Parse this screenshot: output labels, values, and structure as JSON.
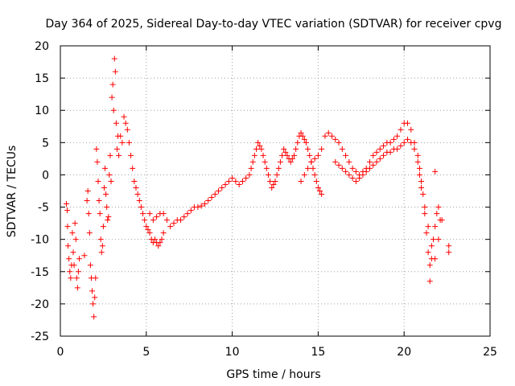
{
  "chart_data": {
    "type": "scatter",
    "title": "Day 364 of 2025, Sidereal Day-to-day VTEC variation (SDTVAR) for receiver cpvg",
    "xlabel": "GPS time / hours",
    "ylabel": "SDTVAR / TECUs",
    "xlim": [
      0,
      25
    ],
    "ylim": [
      -25,
      20
    ],
    "xticks": [
      0,
      5,
      10,
      15,
      20,
      25
    ],
    "yticks": [
      -25,
      -20,
      -15,
      -10,
      -5,
      0,
      5,
      10,
      15,
      20
    ],
    "grid": true,
    "marker": "+",
    "color": "#ff0000",
    "series": [
      {
        "name": "SDTVAR",
        "points": [
          [
            0.35,
            -4.5
          ],
          [
            0.4,
            -5.5
          ],
          [
            0.42,
            -8
          ],
          [
            0.45,
            -11
          ],
          [
            0.5,
            -13
          ],
          [
            0.55,
            -15
          ],
          [
            0.6,
            -16
          ],
          [
            0.65,
            -14
          ],
          [
            0.7,
            -9
          ],
          [
            0.75,
            -12
          ],
          [
            0.8,
            -14
          ],
          [
            0.85,
            -7.5
          ],
          [
            0.9,
            -10
          ],
          [
            0.95,
            -16
          ],
          [
            1.0,
            -17.5
          ],
          [
            1.05,
            -15
          ],
          [
            1.1,
            -13
          ],
          [
            1.4,
            -12.5
          ],
          [
            1.55,
            -4
          ],
          [
            1.6,
            -2.5
          ],
          [
            1.65,
            -6
          ],
          [
            1.7,
            -9
          ],
          [
            1.75,
            -14
          ],
          [
            1.8,
            -16
          ],
          [
            1.85,
            -18
          ],
          [
            1.9,
            -20
          ],
          [
            1.95,
            -22
          ],
          [
            2.0,
            -19
          ],
          [
            2.05,
            -16
          ],
          [
            2.1,
            4
          ],
          [
            2.15,
            2
          ],
          [
            2.2,
            -1
          ],
          [
            2.25,
            -4
          ],
          [
            2.3,
            -6
          ],
          [
            2.35,
            -10
          ],
          [
            2.4,
            -12
          ],
          [
            2.45,
            -11
          ],
          [
            2.5,
            -8
          ],
          [
            2.55,
            -2
          ],
          [
            2.6,
            1
          ],
          [
            2.65,
            -3
          ],
          [
            2.7,
            -5
          ],
          [
            2.75,
            -7
          ],
          [
            2.8,
            -6.5
          ],
          [
            2.85,
            0
          ],
          [
            2.9,
            3
          ],
          [
            2.95,
            -1
          ],
          [
            3.0,
            12
          ],
          [
            3.05,
            14
          ],
          [
            3.1,
            10
          ],
          [
            3.15,
            18
          ],
          [
            3.2,
            16
          ],
          [
            3.25,
            8
          ],
          [
            3.3,
            4
          ],
          [
            3.35,
            6
          ],
          [
            3.4,
            3
          ],
          [
            3.5,
            6
          ],
          [
            3.6,
            5
          ],
          [
            3.7,
            9
          ],
          [
            3.8,
            8
          ],
          [
            3.9,
            7
          ],
          [
            4.0,
            5
          ],
          [
            4.1,
            3
          ],
          [
            4.2,
            1
          ],
          [
            4.3,
            -1
          ],
          [
            4.4,
            -2
          ],
          [
            4.5,
            -3
          ],
          [
            4.6,
            -4
          ],
          [
            4.7,
            -5
          ],
          [
            4.8,
            -6
          ],
          [
            4.9,
            -7
          ],
          [
            5.0,
            -8
          ],
          [
            5.1,
            -8.5
          ],
          [
            5.2,
            -9
          ],
          [
            5.3,
            -10
          ],
          [
            5.4,
            -10.5
          ],
          [
            5.5,
            -10
          ],
          [
            5.6,
            -10.5
          ],
          [
            5.7,
            -11
          ],
          [
            5.8,
            -10.5
          ],
          [
            5.9,
            -10
          ],
          [
            6.0,
            -9
          ],
          [
            5.2,
            -6
          ],
          [
            5.4,
            -7
          ],
          [
            5.6,
            -6.5
          ],
          [
            5.8,
            -6
          ],
          [
            6.0,
            -6
          ],
          [
            6.2,
            -7
          ],
          [
            6.4,
            -8
          ],
          [
            6.6,
            -7.5
          ],
          [
            6.8,
            -7
          ],
          [
            7.0,
            -7
          ],
          [
            7.2,
            -6.5
          ],
          [
            7.4,
            -6
          ],
          [
            7.6,
            -5.5
          ],
          [
            7.8,
            -5
          ],
          [
            8.0,
            -5
          ],
          [
            8.2,
            -4.8
          ],
          [
            8.4,
            -4.5
          ],
          [
            8.6,
            -4
          ],
          [
            8.8,
            -3.5
          ],
          [
            9.0,
            -3
          ],
          [
            9.2,
            -2.5
          ],
          [
            9.4,
            -2
          ],
          [
            9.6,
            -1.5
          ],
          [
            9.8,
            -1
          ],
          [
            10.0,
            -0.5
          ],
          [
            10.2,
            -1
          ],
          [
            10.4,
            -1.5
          ],
          [
            10.6,
            -1
          ],
          [
            10.8,
            -0.5
          ],
          [
            11.0,
            0
          ],
          [
            11.1,
            1
          ],
          [
            11.2,
            2
          ],
          [
            11.3,
            3
          ],
          [
            11.4,
            4
          ],
          [
            11.5,
            5
          ],
          [
            11.6,
            4.5
          ],
          [
            11.7,
            4
          ],
          [
            11.8,
            3
          ],
          [
            11.9,
            2
          ],
          [
            12.0,
            1
          ],
          [
            12.1,
            0
          ],
          [
            12.2,
            -1
          ],
          [
            12.3,
            -2
          ],
          [
            12.4,
            -1.5
          ],
          [
            12.5,
            -1
          ],
          [
            12.6,
            0
          ],
          [
            12.7,
            1
          ],
          [
            12.8,
            2
          ],
          [
            12.9,
            3
          ],
          [
            13.0,
            4
          ],
          [
            13.1,
            3.5
          ],
          [
            13.2,
            3
          ],
          [
            13.3,
            2.5
          ],
          [
            13.4,
            2
          ],
          [
            13.5,
            2.5
          ],
          [
            13.6,
            3
          ],
          [
            13.7,
            4
          ],
          [
            13.8,
            5
          ],
          [
            13.9,
            6
          ],
          [
            14.0,
            6.5
          ],
          [
            14.1,
            6
          ],
          [
            14.2,
            5.5
          ],
          [
            14.3,
            5
          ],
          [
            14.4,
            4
          ],
          [
            14.5,
            3
          ],
          [
            14.6,
            2
          ],
          [
            14.7,
            1
          ],
          [
            14.8,
            0
          ],
          [
            14.9,
            -1
          ],
          [
            15.0,
            -2
          ],
          [
            15.1,
            -2.5
          ],
          [
            15.2,
            -3
          ],
          [
            14.0,
            -1
          ],
          [
            14.2,
            0
          ],
          [
            14.4,
            1
          ],
          [
            14.6,
            2
          ],
          [
            14.8,
            2.5
          ],
          [
            15.0,
            3
          ],
          [
            15.2,
            4
          ],
          [
            15.4,
            6
          ],
          [
            15.6,
            6.5
          ],
          [
            15.8,
            6
          ],
          [
            16.0,
            5.5
          ],
          [
            16.2,
            5
          ],
          [
            16.4,
            4
          ],
          [
            16.6,
            3
          ],
          [
            16.8,
            2
          ],
          [
            17.0,
            1
          ],
          [
            17.2,
            0.5
          ],
          [
            17.4,
            0
          ],
          [
            17.6,
            0.5
          ],
          [
            17.8,
            1
          ],
          [
            18.0,
            2
          ],
          [
            18.2,
            3
          ],
          [
            18.4,
            3.5
          ],
          [
            18.6,
            4
          ],
          [
            18.8,
            4.5
          ],
          [
            19.0,
            5
          ],
          [
            19.2,
            5
          ],
          [
            19.4,
            5.5
          ],
          [
            19.6,
            6
          ],
          [
            19.8,
            7
          ],
          [
            20.0,
            8
          ],
          [
            20.2,
            8
          ],
          [
            20.4,
            7
          ],
          [
            20.6,
            5
          ],
          [
            20.8,
            3
          ],
          [
            20.9,
            1
          ],
          [
            21.0,
            -1
          ],
          [
            21.1,
            -3
          ],
          [
            21.2,
            -6
          ],
          [
            21.3,
            -9
          ],
          [
            21.4,
            -12
          ],
          [
            21.5,
            -14
          ],
          [
            21.6,
            -13
          ],
          [
            21.7,
            -10
          ],
          [
            21.8,
            -8
          ],
          [
            21.9,
            -6
          ],
          [
            22.0,
            -5
          ],
          [
            22.1,
            -7
          ],
          [
            16.0,
            2
          ],
          [
            16.2,
            1.5
          ],
          [
            16.4,
            1
          ],
          [
            16.6,
            0.5
          ],
          [
            16.8,
            0
          ],
          [
            17.0,
            -0.5
          ],
          [
            17.2,
            -1
          ],
          [
            17.4,
            -0.5
          ],
          [
            17.6,
            0
          ],
          [
            17.8,
            0.5
          ],
          [
            18.0,
            1
          ],
          [
            18.2,
            1.5
          ],
          [
            18.4,
            2
          ],
          [
            18.6,
            2.5
          ],
          [
            18.8,
            3
          ],
          [
            19.0,
            3.5
          ],
          [
            19.2,
            3.5
          ],
          [
            19.4,
            4
          ],
          [
            19.6,
            4
          ],
          [
            19.8,
            4.5
          ],
          [
            20.0,
            5
          ],
          [
            20.2,
            5.5
          ],
          [
            20.4,
            5
          ],
          [
            20.6,
            4
          ],
          [
            20.8,
            2
          ],
          [
            20.9,
            0
          ],
          [
            21.0,
            -2
          ],
          [
            21.2,
            -5
          ],
          [
            21.4,
            -8
          ],
          [
            21.6,
            -11
          ],
          [
            21.8,
            -13
          ],
          [
            22.0,
            -10
          ],
          [
            22.2,
            -7
          ],
          [
            21.5,
            -16.5
          ],
          [
            21.8,
            0.5
          ],
          [
            22.6,
            -11
          ],
          [
            22.6,
            -12
          ]
        ]
      }
    ]
  }
}
